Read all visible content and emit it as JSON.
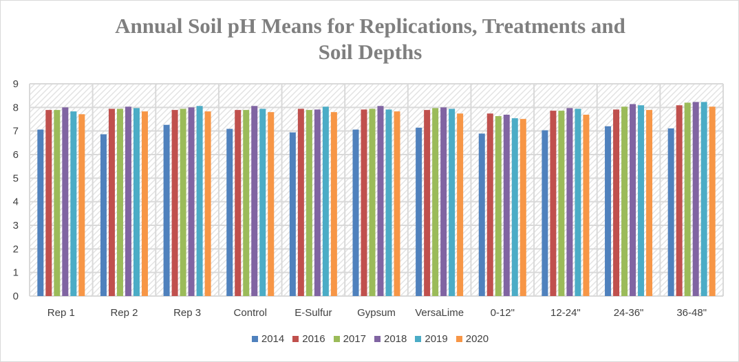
{
  "chart_data": {
    "type": "bar",
    "title": "Annual Soil pH Means for Replications, Treatments and Soil Depths",
    "title_lines": [
      "Annual Soil pH Means for Replications, Treatments and",
      "Soil Depths"
    ],
    "categories": [
      "Rep 1",
      "Rep 2",
      "Rep 3",
      "Control",
      "E-Sulfur",
      "Gypsum",
      "VersaLime",
      "0-12\"",
      "12-24\"",
      "24-36\"",
      "36-48\""
    ],
    "ylim": [
      0,
      9
    ],
    "yticks": [
      0,
      1,
      2,
      3,
      4,
      5,
      6,
      7,
      8,
      9
    ],
    "grid": true,
    "legend": "bottom",
    "series": [
      {
        "name": "2014",
        "color": "#4f81bd",
        "values": [
          7.06,
          6.86,
          7.26,
          7.09,
          6.94,
          7.06,
          7.14,
          6.89,
          7.03,
          7.2,
          7.11
        ]
      },
      {
        "name": "2016",
        "color": "#c0504d",
        "values": [
          7.89,
          7.94,
          7.89,
          7.89,
          7.94,
          7.91,
          7.89,
          7.74,
          7.86,
          7.91,
          8.09
        ]
      },
      {
        "name": "2017",
        "color": "#9bbb59",
        "values": [
          7.89,
          7.94,
          7.94,
          7.89,
          7.89,
          7.94,
          7.97,
          7.63,
          7.86,
          8.03,
          8.2
        ]
      },
      {
        "name": "2018",
        "color": "#8064a2",
        "values": [
          8.0,
          8.03,
          8.0,
          8.06,
          7.91,
          8.06,
          8.0,
          7.69,
          7.97,
          8.14,
          8.23
        ]
      },
      {
        "name": "2019",
        "color": "#4bacc6",
        "values": [
          7.83,
          7.97,
          8.06,
          7.94,
          8.03,
          7.91,
          7.94,
          7.54,
          7.94,
          8.09,
          8.23
        ]
      },
      {
        "name": "2020",
        "color": "#f79646",
        "values": [
          7.71,
          7.83,
          7.83,
          7.8,
          7.8,
          7.83,
          7.74,
          7.51,
          7.69,
          7.89,
          8.03
        ]
      }
    ]
  }
}
